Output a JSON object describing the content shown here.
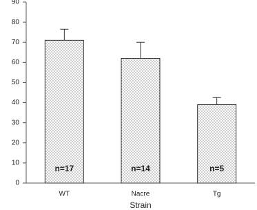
{
  "chart_data": {
    "type": "bar",
    "x_label": "Strain",
    "categories": [
      "WT",
      "Nacre",
      "Tg"
    ],
    "values": [
      71,
      62,
      39
    ],
    "errors": [
      5.5,
      8,
      3.5
    ],
    "annotations": [
      "n=17",
      "n=14",
      "n=5"
    ],
    "color": "#333333",
    "ylim": [
      0,
      90
    ],
    "yticks": [
      0,
      10,
      20,
      30,
      40,
      50,
      60,
      70,
      80,
      90
    ],
    "grid": false
  }
}
